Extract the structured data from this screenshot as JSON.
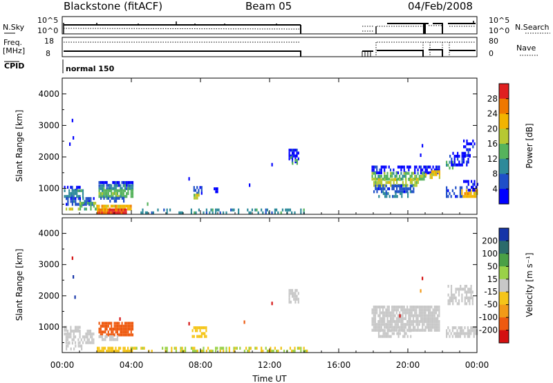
{
  "header": {
    "station": "Blackstone (fitACF)",
    "beam": "Beam 05",
    "date": "04/Feb/2008"
  },
  "summary": {
    "n_sky": "N.Sky",
    "n_search": "N.Search",
    "freq_label": "Freq.",
    "freq_unit": "[MHz]",
    "nave": "Nave",
    "cpid": "CPID",
    "cpid_value": "normal 150",
    "nsky_ticks": [
      "10^5",
      "10^0"
    ],
    "nsearch_ticks": [
      "10^5",
      "10^0"
    ],
    "freq_ticks": [
      "18",
      "8"
    ],
    "nave_ticks": [
      "80",
      "0"
    ]
  },
  "colors": {
    "power": [
      "#0000ff",
      "#1f4fc8",
      "#2e8a9a",
      "#56b35c",
      "#b6c832",
      "#f2b400",
      "#f07800",
      "#e02020"
    ],
    "velocity_pos": [
      "#1535a8",
      "#2b6b6b",
      "#4aa046",
      "#9ad248"
    ],
    "velocity_zero": "#c8c8c8",
    "velocity_neg": [
      "#f5c518",
      "#f29a18",
      "#ee5a10",
      "#d41010"
    ]
  },
  "chart_data": [
    {
      "type": "heatmap",
      "name": "power",
      "ylabel": "Slant Range [km]",
      "ylim": [
        180,
        4500
      ],
      "yticks": [
        1000,
        2000,
        3000,
        4000
      ],
      "xlim": [
        0,
        24
      ],
      "colorbar_label": "Power [dB]",
      "colorbar_ticks": [
        4,
        8,
        12,
        16,
        20,
        24,
        28
      ],
      "colorbar_range": [
        0,
        32
      ],
      "regions": [
        {
          "t0": 0.1,
          "t1": 1.0,
          "r0": 900,
          "r1": 1000,
          "c": 0,
          "d": 0.6
        },
        {
          "t0": 0.1,
          "t1": 1.2,
          "r0": 700,
          "r1": 900,
          "c": 2,
          "d": 0.7
        },
        {
          "t0": 0.2,
          "t1": 1.8,
          "r0": 450,
          "r1": 700,
          "c": 1,
          "d": 0.7
        },
        {
          "t0": 0.2,
          "t1": 1.0,
          "r0": 300,
          "r1": 380,
          "c": 4,
          "d": 0.7
        },
        {
          "t0": 1.0,
          "t1": 2.0,
          "r0": 300,
          "r1": 500,
          "c": 3,
          "d": 0.6
        },
        {
          "t0": 2.1,
          "t1": 4.1,
          "r0": 1050,
          "r1": 1150,
          "c": 0,
          "d": 0.7
        },
        {
          "t0": 2.1,
          "t1": 4.1,
          "r0": 950,
          "r1": 1050,
          "c": 2,
          "d": 0.8
        },
        {
          "t0": 2.1,
          "t1": 4.1,
          "r0": 700,
          "r1": 950,
          "c": 3,
          "d": 0.8
        },
        {
          "t0": 2.2,
          "t1": 3.6,
          "r0": 550,
          "r1": 700,
          "c": 1,
          "d": 0.6
        },
        {
          "t0": 2.0,
          "t1": 4.0,
          "r0": 300,
          "r1": 400,
          "c": 5,
          "d": 0.8
        },
        {
          "t0": 2.6,
          "t1": 3.7,
          "r0": 180,
          "r1": 300,
          "c": 7,
          "d": 0.95
        },
        {
          "t0": 2.0,
          "t1": 2.6,
          "r0": 180,
          "r1": 300,
          "c": 6,
          "d": 0.9
        },
        {
          "t0": 7.5,
          "t1": 8.1,
          "r0": 800,
          "r1": 1000,
          "c": 1,
          "d": 0.6
        },
        {
          "t0": 7.6,
          "t1": 8.0,
          "r0": 650,
          "r1": 800,
          "c": 4,
          "d": 0.6
        },
        {
          "t0": 8.5,
          "t1": 9.0,
          "r0": 850,
          "r1": 950,
          "c": 0,
          "d": 0.4
        },
        {
          "t0": 4.0,
          "t1": 14.2,
          "r0": 180,
          "r1": 350,
          "c": 2,
          "d": 0.3
        },
        {
          "t0": 13.1,
          "t1": 13.7,
          "r0": 1800,
          "r1": 2200,
          "c": 0,
          "d": 0.6
        },
        {
          "t0": 13.2,
          "t1": 13.6,
          "r0": 1750,
          "r1": 2000,
          "c": 3,
          "d": 0.4
        },
        {
          "t0": 17.9,
          "t1": 21.8,
          "r0": 1450,
          "r1": 1650,
          "c": 0,
          "d": 0.5
        },
        {
          "t0": 17.9,
          "t1": 21.0,
          "r0": 1250,
          "r1": 1450,
          "c": 3,
          "d": 0.7
        },
        {
          "t0": 18.0,
          "t1": 20.6,
          "r0": 1050,
          "r1": 1250,
          "c": 4,
          "d": 0.7
        },
        {
          "t0": 18.0,
          "t1": 20.3,
          "r0": 850,
          "r1": 1050,
          "c": 1,
          "d": 0.6
        },
        {
          "t0": 18.2,
          "t1": 20.0,
          "r0": 700,
          "r1": 850,
          "c": 2,
          "d": 0.5
        },
        {
          "t0": 21.0,
          "t1": 21.8,
          "r0": 1300,
          "r1": 1500,
          "c": 5,
          "d": 0.6
        },
        {
          "t0": 22.2,
          "t1": 22.6,
          "r0": 1600,
          "r1": 1800,
          "c": 3,
          "d": 0.6
        },
        {
          "t0": 22.4,
          "t1": 23.6,
          "r0": 1700,
          "r1": 2100,
          "c": 0,
          "d": 0.5
        },
        {
          "t0": 23.2,
          "t1": 23.9,
          "r0": 2000,
          "r1": 2500,
          "c": 0,
          "d": 0.4
        },
        {
          "t0": 22.2,
          "t1": 23.1,
          "r0": 700,
          "r1": 1000,
          "c": 1,
          "d": 0.4
        },
        {
          "t0": 23.0,
          "t1": 24.0,
          "r0": 700,
          "r1": 900,
          "c": 5,
          "d": 0.7
        },
        {
          "t0": 23.2,
          "t1": 24.0,
          "r0": 900,
          "r1": 1200,
          "c": 0,
          "d": 0.5
        }
      ],
      "specks": [
        {
          "t": 0.55,
          "r": 3100,
          "c": 0
        },
        {
          "t": 0.6,
          "r": 2550,
          "c": 0
        },
        {
          "t": 0.4,
          "r": 2350,
          "c": 0
        },
        {
          "t": 7.3,
          "r": 1250,
          "c": 0
        },
        {
          "t": 10.8,
          "r": 1050,
          "c": 0
        },
        {
          "t": 12.1,
          "r": 1700,
          "c": 0
        },
        {
          "t": 20.8,
          "r": 2300,
          "c": 0
        },
        {
          "t": 20.7,
          "r": 2000,
          "c": 0
        },
        {
          "t": 4.9,
          "r": 450,
          "c": 3
        }
      ]
    },
    {
      "type": "heatmap",
      "name": "velocity",
      "ylabel": "Slant Range [km]",
      "ylim": [
        180,
        4500
      ],
      "yticks": [
        1000,
        2000,
        3000,
        4000
      ],
      "xlim": [
        0,
        24
      ],
      "xticks": [
        "00:00",
        "04:00",
        "08:00",
        "12:00",
        "16:00",
        "20:00",
        "00:00"
      ],
      "xlabel": "Time UT",
      "colorbar_label": "Velocity [m s⁻¹]",
      "colorbar_ticks": [
        "200",
        "100",
        "50",
        "15",
        "-15",
        "-50",
        "-100",
        "-200"
      ],
      "regions": [
        {
          "t0": 0.1,
          "t1": 1.0,
          "r0": 850,
          "r1": 1000,
          "c": "z",
          "d": 0.6
        },
        {
          "t0": 0.1,
          "t1": 1.8,
          "r0": 450,
          "r1": 850,
          "c": "z",
          "d": 0.6
        },
        {
          "t0": 0.2,
          "t1": 1.2,
          "r0": 250,
          "r1": 450,
          "c": "z",
          "d": 0.5
        },
        {
          "t0": 2.1,
          "t1": 4.1,
          "r0": 700,
          "r1": 1150,
          "c": "n2",
          "d": 0.85
        },
        {
          "t0": 2.1,
          "t1": 3.2,
          "r0": 550,
          "r1": 700,
          "c": "z",
          "d": 0.6
        },
        {
          "t0": 2.0,
          "t1": 4.0,
          "r0": 180,
          "r1": 350,
          "c": "n0",
          "d": 0.85
        },
        {
          "t0": 7.5,
          "t1": 8.3,
          "r0": 650,
          "r1": 1000,
          "c": "n0",
          "d": 0.6
        },
        {
          "t0": 4.0,
          "t1": 14.2,
          "r0": 180,
          "r1": 350,
          "c": "p3",
          "d": 0.25
        },
        {
          "t0": 4.0,
          "t1": 14.2,
          "r0": 180,
          "r1": 300,
          "c": "n0",
          "d": 0.2
        },
        {
          "t0": 13.1,
          "t1": 13.7,
          "r0": 1750,
          "r1": 2200,
          "c": "z",
          "d": 0.6
        },
        {
          "t0": 17.9,
          "t1": 21.8,
          "r0": 850,
          "r1": 1650,
          "c": "z",
          "d": 0.85
        },
        {
          "t0": 18.1,
          "t1": 20.2,
          "r0": 650,
          "r1": 850,
          "c": "z",
          "d": 0.5
        },
        {
          "t0": 22.3,
          "t1": 23.8,
          "r0": 1700,
          "r1": 2300,
          "c": "z",
          "d": 0.6
        },
        {
          "t0": 22.2,
          "t1": 24.0,
          "r0": 650,
          "r1": 1000,
          "c": "z",
          "d": 0.6
        }
      ],
      "specks": [
        {
          "t": 0.55,
          "r": 3150,
          "c": "n3"
        },
        {
          "t": 0.6,
          "r": 2550,
          "c": "p0"
        },
        {
          "t": 0.7,
          "r": 1900,
          "c": "p0"
        },
        {
          "t": 7.3,
          "r": 1050,
          "c": "n3"
        },
        {
          "t": 10.5,
          "r": 1100,
          "c": "n2"
        },
        {
          "t": 12.1,
          "r": 1700,
          "c": "n3"
        },
        {
          "t": 20.8,
          "r": 2500,
          "c": "n3"
        },
        {
          "t": 20.7,
          "r": 2100,
          "c": "n1"
        },
        {
          "t": 19.5,
          "r": 1300,
          "c": "n3"
        },
        {
          "t": 3.3,
          "r": 1200,
          "c": "n3"
        }
      ]
    }
  ]
}
